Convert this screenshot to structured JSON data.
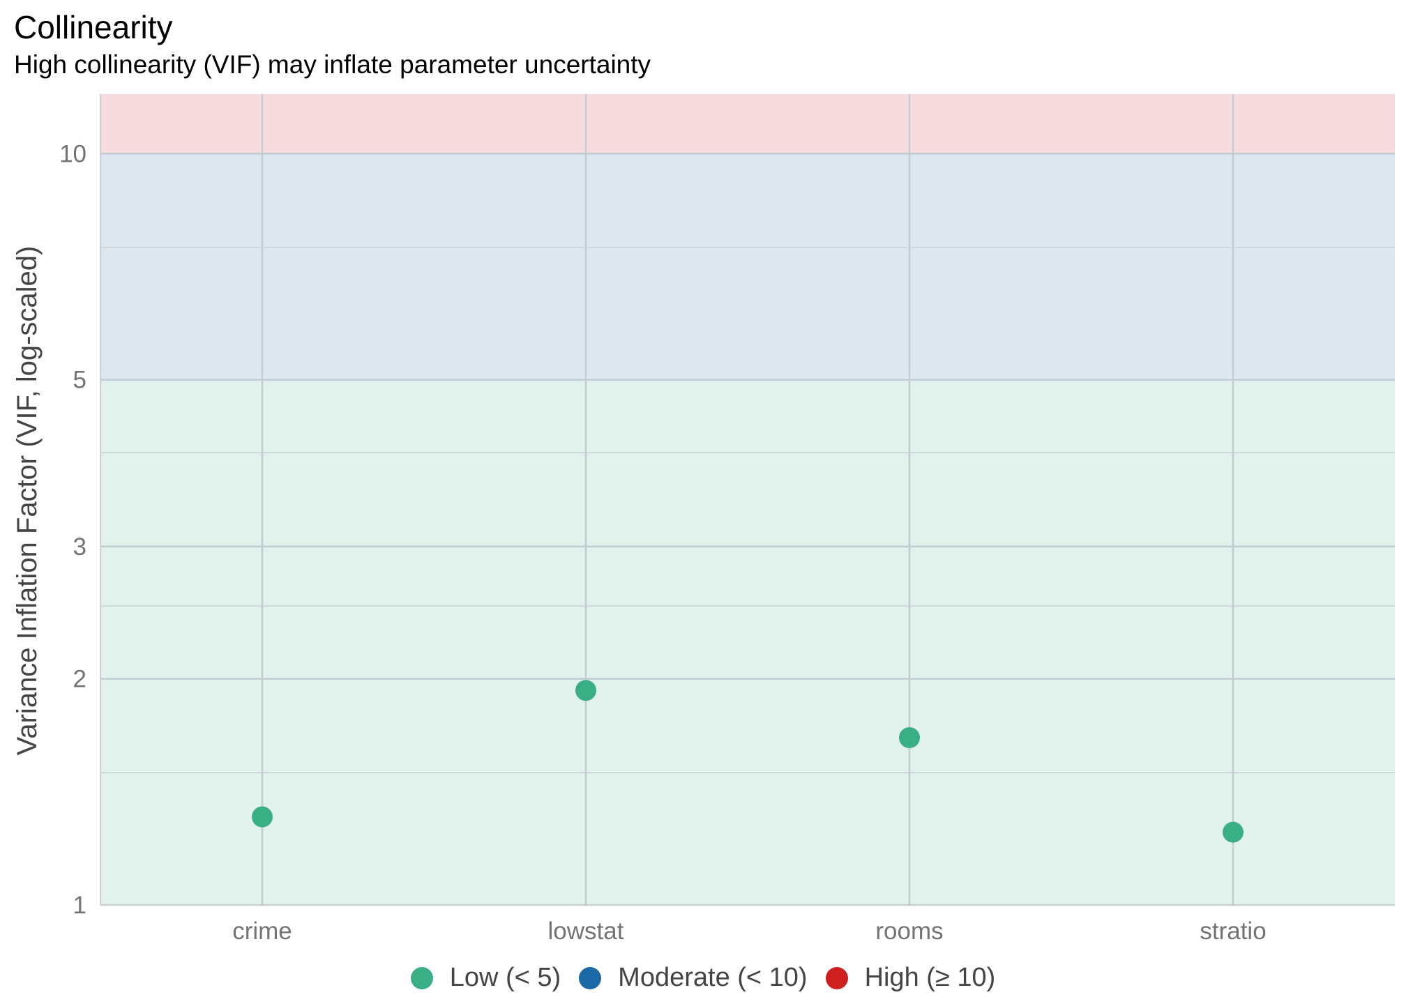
{
  "chart_data": {
    "type": "scatter",
    "title": "Collinearity",
    "subtitle": "High collinearity (VIF) may inflate parameter uncertainty",
    "xlabel": "",
    "ylabel": "Variance Inflation Factor (VIF, log-scaled)",
    "y_scale": "log",
    "ylim": [
      1,
      12
    ],
    "y_ticks": [
      1,
      2,
      3,
      5,
      10
    ],
    "y_minor_ticks": [
      1.5,
      2.5,
      4,
      7.5
    ],
    "grid": true,
    "categories": [
      "crime",
      "lowstat",
      "rooms",
      "stratio"
    ],
    "values": [
      1.31,
      1.93,
      1.67,
      1.25
    ],
    "point_group": [
      "Low (< 5)",
      "Low (< 5)",
      "Low (< 5)",
      "Low (< 5)"
    ],
    "bands": [
      {
        "from": 1,
        "to": 5,
        "color": "#e1f1ec"
      },
      {
        "from": 5,
        "to": 10,
        "color": "#dde7f0"
      },
      {
        "from": 10,
        "to": 12,
        "color": "#f7dcdf"
      }
    ],
    "legend": {
      "position": "bottom",
      "items": [
        {
          "label": "Low (< 5)",
          "color": "#3aaf85"
        },
        {
          "label": "Moderate (< 10)",
          "color": "#1b6aa5"
        },
        {
          "label": "High (≥ 10)",
          "color": "#cd201f"
        }
      ]
    }
  }
}
